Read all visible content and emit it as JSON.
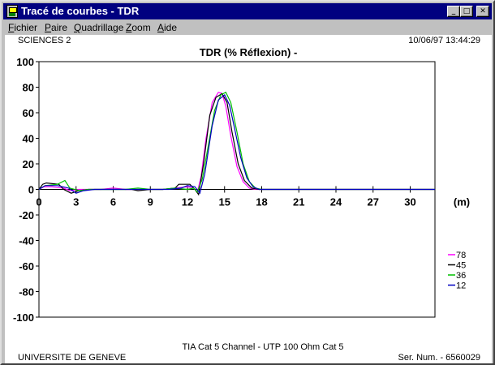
{
  "window": {
    "title": "Tracé de courbes - TDR",
    "icon": "tdr-app-icon",
    "buttons": {
      "minimize": "minimize-icon",
      "maximize": "maximize-icon",
      "close": "close-icon"
    }
  },
  "menu": {
    "items": [
      {
        "label": "Fichier",
        "mnemonic": "F",
        "rest": "ichier"
      },
      {
        "label": "Paire",
        "mnemonic": "P",
        "rest": "aire"
      },
      {
        "label": "Quadrillage",
        "mnemonic": "Q",
        "rest": "uadrillage"
      },
      {
        "label": "Zoom",
        "mnemonic": "Z",
        "rest": "oom"
      },
      {
        "label": "Aide",
        "mnemonic": "A",
        "rest": "ide"
      }
    ]
  },
  "header": {
    "site": "SCIENCES 2",
    "datetime": "10/06/97  13:44:29"
  },
  "footer": {
    "description": "TIA Cat 5 Channel - UTP 100 Ohm Cat 5",
    "organization": "UNIVERSITE DE GENEVE",
    "serial": "Ser. Num. - 6560029"
  },
  "chart_data": {
    "type": "line",
    "title": "TDR (% Réflexion) -",
    "xlabel": "(m)",
    "ylabel": "",
    "xlim": [
      0,
      32
    ],
    "ylim": [
      -100,
      100
    ],
    "xticks": [
      0,
      3,
      6,
      9,
      12,
      15,
      18,
      21,
      24,
      27,
      30
    ],
    "yticks": [
      100,
      80,
      60,
      40,
      20,
      0,
      -20,
      -40,
      -60,
      -80,
      -100
    ],
    "legend_position": "right",
    "series": [
      {
        "name": "78",
        "color": "#ff00ff",
        "x": [
          0,
          0.4,
          1.0,
          2.0,
          2.5,
          3.2,
          4.0,
          5.0,
          6.0,
          7.0,
          8.0,
          9.0,
          10.0,
          11.0,
          12.0,
          12.5,
          12.8,
          13.1,
          13.5,
          14.0,
          14.5,
          14.8,
          15.1,
          15.5,
          16.0,
          16.5,
          17.0,
          17.5,
          18.0,
          32.0
        ],
        "y": [
          0,
          2,
          2,
          1,
          -1,
          0,
          0,
          0,
          1,
          0,
          0,
          0,
          0,
          1,
          2,
          1,
          -2,
          10,
          40,
          68,
          76,
          75,
          65,
          42,
          18,
          6,
          1,
          0,
          0,
          0
        ]
      },
      {
        "name": "45",
        "color": "#000000",
        "x": [
          0,
          0.3,
          0.6,
          1.6,
          2.0,
          2.6,
          3.2,
          4.0,
          5.0,
          6.0,
          7.5,
          8.0,
          9.0,
          10.0,
          11.0,
          11.3,
          12.2,
          12.6,
          12.9,
          13.3,
          13.8,
          14.3,
          14.8,
          15.2,
          15.6,
          16.1,
          16.6,
          17.2,
          17.8,
          32.0
        ],
        "y": [
          0,
          4,
          5,
          4,
          0,
          -3,
          -1,
          0,
          0,
          0,
          0,
          -1,
          0,
          0,
          1,
          4,
          4,
          0,
          -4,
          20,
          58,
          72,
          75,
          68,
          45,
          20,
          7,
          1,
          0,
          0
        ]
      },
      {
        "name": "36",
        "color": "#00c000",
        "x": [
          0,
          0.5,
          1.5,
          2.1,
          2.5,
          3.3,
          4.0,
          5.0,
          6.0,
          7.0,
          8.0,
          9.0,
          10.0,
          11.0,
          12.0,
          12.5,
          12.8,
          13.2,
          13.7,
          14.2,
          14.7,
          15.1,
          15.5,
          16.0,
          16.5,
          17.0,
          17.5,
          18.0,
          32.0
        ],
        "y": [
          0,
          3,
          4,
          7,
          1,
          -1,
          0,
          0,
          0,
          0,
          1,
          0,
          0,
          1,
          0,
          1,
          -2,
          8,
          35,
          62,
          74,
          76,
          68,
          45,
          20,
          6,
          1,
          0,
          0
        ]
      },
      {
        "name": "12",
        "color": "#0000c0",
        "x": [
          0,
          0.5,
          1.5,
          2.4,
          3.0,
          3.6,
          4.5,
          5.5,
          6.5,
          7.5,
          8.5,
          9.5,
          10.5,
          11.5,
          12.0,
          12.6,
          13.0,
          13.4,
          14.0,
          14.5,
          15.0,
          15.4,
          15.8,
          16.3,
          16.8,
          17.3,
          17.8,
          18.3,
          32.0
        ],
        "y": [
          0,
          3,
          3,
          1,
          -3,
          -1,
          0,
          0,
          0,
          0,
          0,
          0,
          0,
          1,
          3,
          2,
          -3,
          12,
          50,
          70,
          74,
          66,
          48,
          25,
          9,
          2,
          0,
          0,
          0
        ]
      }
    ]
  }
}
